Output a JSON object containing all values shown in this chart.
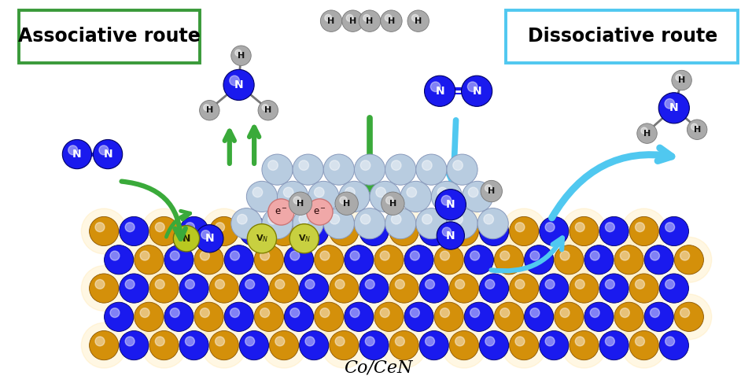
{
  "title": "Co/CeN",
  "label_assoc": "Associative route",
  "label_dissoc": "Dissociative route",
  "assoc_box_color": "#3a9a3a",
  "dissoc_box_color": "#50c8f0",
  "bg_color": "#ffffff",
  "N_color": "#1a1aee",
  "N_text_color": "#ffffff",
  "H_color": "#aaaaaa",
  "H_text_color": "#111111",
  "Ce_color": "#cc8800",
  "blue_color": "#1a1aee",
  "Co_color": "#b8cce0",
  "VN_color": "#c8d040",
  "e_color": "#f0a8a8",
  "green_arrow": "#3aaa3a",
  "cyan_arrow": "#50c8f0",
  "label_fontsize": 17,
  "title_fontsize": 16
}
